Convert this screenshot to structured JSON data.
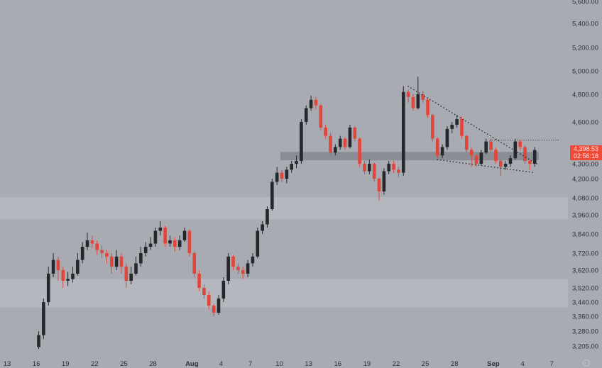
{
  "chart_data": {
    "type": "candlestick",
    "title": "",
    "interval": "12h",
    "start_date": "Jul 16",
    "y_ticks": [
      5600,
      5400,
      5200,
      5000,
      4800,
      4600,
      4300,
      4200,
      4080,
      3960,
      3840,
      3720,
      3620,
      3520,
      3440,
      3360,
      3280,
      3205
    ],
    "y_tick_labels": [
      "5,600.00",
      "5,400.00",
      "5,200.00",
      "5,000.00",
      "4,800.00",
      "4,600.00",
      "4,300.00",
      "4,200.00",
      "4,080.00",
      "3,960.00",
      "3,840.00",
      "3,720.00",
      "3,620.00",
      "3,520.00",
      "3,440.00",
      "3,360.00",
      "3,280.00",
      "3,205.00"
    ],
    "x_tick_labels": [
      "13",
      "16",
      "19",
      "22",
      "25",
      "28",
      "Aug",
      "4",
      "7",
      "10",
      "13",
      "16",
      "19",
      "22",
      "25",
      "28",
      "Sep",
      "4",
      "7"
    ],
    "x_tick_day_offsets": [
      0,
      3,
      6,
      9,
      12,
      15,
      19,
      22,
      25,
      28,
      31,
      34,
      37,
      40,
      43,
      46,
      50,
      53,
      56
    ],
    "last_price": "4,398.53",
    "countdown": "02:56:18",
    "zones": [
      {
        "name": "resistance-zone",
        "from": 3930,
        "to": 4085,
        "color": "#b5b7be"
      },
      {
        "name": "support-zone",
        "from": 3410,
        "to": 3570,
        "color": "#b5b7be"
      },
      {
        "name": "key-level-band",
        "from": 4325,
        "to": 4385,
        "color": "#8b8d94",
        "start_day": 28.1
      }
    ],
    "trendlines": [
      {
        "name": "upper-trendline",
        "p1": [
          41.2,
          4870
        ],
        "p2": [
          54.7,
          4290
        ]
      },
      {
        "name": "lower-trendline",
        "p1": [
          44.2,
          4330
        ],
        "p2": [
          54.3,
          4240
        ]
      },
      {
        "name": "horizontal-resistance",
        "p1": [
          49.6,
          4470
        ],
        "p2": [
          56.8,
          4470
        ]
      }
    ],
    "colors": {
      "up": "#26272b",
      "down": "#e0463c",
      "background": "#a9abb2"
    },
    "ohlc": [
      [
        3200,
        3280,
        3190,
        3260
      ],
      [
        3260,
        3460,
        3240,
        3440
      ],
      [
        3440,
        3640,
        3420,
        3600
      ],
      [
        3600,
        3720,
        3580,
        3680
      ],
      [
        3680,
        3700,
        3560,
        3620
      ],
      [
        3620,
        3640,
        3520,
        3560
      ],
      [
        3560,
        3610,
        3530,
        3570
      ],
      [
        3570,
        3640,
        3550,
        3600
      ],
      [
        3600,
        3720,
        3590,
        3680
      ],
      [
        3680,
        3790,
        3660,
        3760
      ],
      [
        3760,
        3850,
        3740,
        3800
      ],
      [
        3800,
        3830,
        3750,
        3780
      ],
      [
        3780,
        3800,
        3710,
        3740
      ],
      [
        3740,
        3770,
        3690,
        3720
      ],
      [
        3720,
        3740,
        3660,
        3700
      ],
      [
        3700,
        3720,
        3600,
        3640
      ],
      [
        3640,
        3740,
        3620,
        3700
      ],
      [
        3700,
        3720,
        3600,
        3640
      ],
      [
        3640,
        3660,
        3520,
        3560
      ],
      [
        3560,
        3640,
        3540,
        3600
      ],
      [
        3600,
        3700,
        3590,
        3660
      ],
      [
        3660,
        3760,
        3640,
        3720
      ],
      [
        3720,
        3790,
        3700,
        3760
      ],
      [
        3760,
        3820,
        3740,
        3780
      ],
      [
        3780,
        3880,
        3760,
        3860
      ],
      [
        3860,
        3920,
        3830,
        3880
      ],
      [
        3880,
        3890,
        3760,
        3780
      ],
      [
        3780,
        3830,
        3760,
        3800
      ],
      [
        3800,
        3820,
        3730,
        3760
      ],
      [
        3760,
        3830,
        3740,
        3800
      ],
      [
        3800,
        3880,
        3790,
        3860
      ],
      [
        3860,
        3870,
        3700,
        3720
      ],
      [
        3720,
        3730,
        3580,
        3600
      ],
      [
        3600,
        3620,
        3500,
        3520
      ],
      [
        3520,
        3540,
        3460,
        3480
      ],
      [
        3480,
        3500,
        3400,
        3420
      ],
      [
        3420,
        3430,
        3360,
        3380
      ],
      [
        3380,
        3480,
        3370,
        3460
      ],
      [
        3460,
        3580,
        3440,
        3560
      ],
      [
        3560,
        3720,
        3540,
        3700
      ],
      [
        3700,
        3710,
        3620,
        3640
      ],
      [
        3640,
        3660,
        3600,
        3620
      ],
      [
        3620,
        3640,
        3570,
        3600
      ],
      [
        3600,
        3680,
        3580,
        3660
      ],
      [
        3660,
        3720,
        3640,
        3700
      ],
      [
        3700,
        3880,
        3690,
        3860
      ],
      [
        3860,
        3920,
        3840,
        3900
      ],
      [
        3900,
        4020,
        3880,
        4000
      ],
      [
        4000,
        4200,
        3990,
        4180
      ],
      [
        4180,
        4280,
        4160,
        4240
      ],
      [
        4240,
        4260,
        4180,
        4200
      ],
      [
        4200,
        4280,
        4170,
        4260
      ],
      [
        4260,
        4320,
        4240,
        4300
      ],
      [
        4300,
        4360,
        4270,
        4320
      ],
      [
        4320,
        4620,
        4300,
        4600
      ],
      [
        4600,
        4720,
        4580,
        4700
      ],
      [
        4700,
        4790,
        4680,
        4760
      ],
      [
        4760,
        4780,
        4690,
        4720
      ],
      [
        4720,
        4730,
        4540,
        4560
      ],
      [
        4560,
        4580,
        4480,
        4500
      ],
      [
        4500,
        4520,
        4360,
        4380
      ],
      [
        4380,
        4440,
        4360,
        4420
      ],
      [
        4420,
        4500,
        4400,
        4480
      ],
      [
        4480,
        4490,
        4400,
        4420
      ],
      [
        4420,
        4580,
        4410,
        4560
      ],
      [
        4560,
        4570,
        4460,
        4480
      ],
      [
        4480,
        4490,
        4280,
        4300
      ],
      [
        4300,
        4320,
        4230,
        4250
      ],
      [
        4250,
        4330,
        4230,
        4300
      ],
      [
        4300,
        4310,
        4180,
        4200
      ],
      [
        4200,
        4210,
        4060,
        4120
      ],
      [
        4120,
        4270,
        4100,
        4250
      ],
      [
        4250,
        4320,
        4230,
        4300
      ],
      [
        4300,
        4320,
        4240,
        4260
      ],
      [
        4260,
        4280,
        4210,
        4240
      ],
      [
        4240,
        4870,
        4220,
        4820
      ],
      [
        4820,
        4840,
        4740,
        4780
      ],
      [
        4780,
        4800,
        4680,
        4700
      ],
      [
        4700,
        4950,
        4690,
        4800
      ],
      [
        4800,
        4830,
        4740,
        4760
      ],
      [
        4760,
        4770,
        4630,
        4650
      ],
      [
        4650,
        4660,
        4460,
        4480
      ],
      [
        4480,
        4490,
        4340,
        4360
      ],
      [
        4360,
        4440,
        4340,
        4420
      ],
      [
        4420,
        4570,
        4400,
        4550
      ],
      [
        4550,
        4600,
        4520,
        4580
      ],
      [
        4580,
        4650,
        4560,
        4620
      ],
      [
        4620,
        4640,
        4480,
        4500
      ],
      [
        4500,
        4510,
        4380,
        4400
      ],
      [
        4400,
        4420,
        4280,
        4360
      ],
      [
        4360,
        4370,
        4280,
        4300
      ],
      [
        4300,
        4400,
        4290,
        4380
      ],
      [
        4380,
        4480,
        4370,
        4460
      ],
      [
        4460,
        4480,
        4380,
        4400
      ],
      [
        4400,
        4420,
        4300,
        4320
      ],
      [
        4320,
        4330,
        4220,
        4280
      ],
      [
        4280,
        4320,
        4260,
        4300
      ],
      [
        4300,
        4360,
        4280,
        4340
      ],
      [
        4340,
        4480,
        4330,
        4460
      ],
      [
        4460,
        4470,
        4400,
        4420
      ],
      [
        4420,
        4430,
        4300,
        4320
      ],
      [
        4320,
        4330,
        4260,
        4300
      ],
      [
        4300,
        4420,
        4280,
        4398.53
      ]
    ]
  }
}
